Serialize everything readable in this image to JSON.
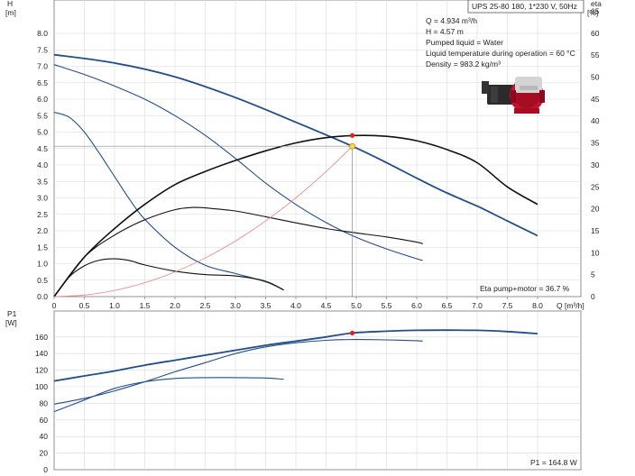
{
  "header": {
    "title": "UPS 25-80 180, 1*230 V, 50Hz"
  },
  "info": {
    "lines": [
      "Q = 4.934 m³/h",
      "H = 4.57 m",
      "Pumped liquid = Water",
      "Liquid temperature during operation = 60 °C",
      "Density = 983.2 kg/m³"
    ]
  },
  "pump_image": {
    "icon": "circulator-pump-icon",
    "accent": "#c8102e"
  },
  "chart_data": [
    {
      "type": "line",
      "name": "head-eta-chart",
      "ylabel_left": [
        "H",
        "[m]"
      ],
      "ylabel_right": [
        "eta",
        "[%]"
      ],
      "xlabel": "Q [m³/h]",
      "xlim": [
        0,
        8.6
      ],
      "ylim": [
        0,
        8.8
      ],
      "ylim_right": [
        0,
        75
      ],
      "x_ticks": [
        0,
        0.5,
        1,
        1.5,
        2,
        2.5,
        3,
        3.5,
        4,
        4.5,
        5,
        5.5,
        6,
        6.5,
        7,
        7.5,
        8
      ],
      "x_tick_labels": [
        "0",
        "0.5",
        "1.0",
        "1.5",
        "2.0",
        "2.5",
        "3.0",
        "3.5",
        "4.0",
        "4.5",
        "5.0",
        "5.5",
        "6.0",
        "6.5",
        "7.0",
        "7.5",
        "8.0"
      ],
      "y_ticks": [
        0,
        0.5,
        1,
        1.5,
        2,
        2.5,
        3,
        3.5,
        4,
        4.5,
        5,
        5.5,
        6,
        6.5,
        7,
        7.5,
        8
      ],
      "y_tick_labels": [
        "0.0",
        "0.5",
        "1.0",
        "1.5",
        "2.0",
        "2.5",
        "3.0",
        "3.5",
        "4.0",
        "4.5",
        "5.0",
        "5.5",
        "6.0",
        "6.5",
        "7.0",
        "7.5",
        "8.0"
      ],
      "y_right_ticks": [
        0,
        5,
        10,
        15,
        20,
        25,
        30,
        35,
        40,
        45,
        50,
        55,
        60,
        65
      ],
      "grid": true,
      "series": [
        {
          "role": "head-speed-3",
          "axis": "left",
          "color": "#1f4e8c",
          "width": 1.8,
          "x": [
            0,
            1,
            2,
            3,
            4,
            4.934,
            5.5,
            6,
            6.5,
            7,
            7.5,
            8
          ],
          "y": [
            7.35,
            7.1,
            6.68,
            6.05,
            5.3,
            4.57,
            4.07,
            3.6,
            3.15,
            2.75,
            2.3,
            1.85
          ]
        },
        {
          "role": "head-speed-2",
          "axis": "left",
          "color": "#1f4e8c",
          "width": 1.1,
          "x": [
            0,
            0.5,
            1,
            1.5,
            2,
            2.5,
            3,
            3.5,
            4,
            4.5,
            5,
            5.5,
            6,
            6.1
          ],
          "y": [
            7.05,
            6.75,
            6.4,
            6.0,
            5.5,
            4.9,
            4.2,
            3.45,
            2.8,
            2.25,
            1.8,
            1.45,
            1.15,
            1.1
          ]
        },
        {
          "role": "head-speed-1",
          "axis": "left",
          "color": "#1f4e8c",
          "width": 1.1,
          "x": [
            0,
            0.25,
            0.5,
            0.75,
            1,
            1.25,
            1.5,
            2,
            2.5,
            3,
            3.5,
            3.8
          ],
          "y": [
            5.6,
            5.45,
            5.0,
            4.35,
            3.65,
            2.95,
            2.35,
            1.5,
            0.95,
            0.7,
            0.45,
            0.2
          ]
        },
        {
          "role": "eta-speed-3",
          "axis": "right",
          "color": "#111111",
          "width": 1.6,
          "x": [
            0,
            0.5,
            1,
            1.5,
            2,
            2.5,
            3,
            3.5,
            4,
            4.5,
            5,
            5.5,
            6,
            6.5,
            7,
            7.5,
            8
          ],
          "y": [
            0,
            9,
            15.5,
            21,
            25.5,
            28.5,
            31,
            33.2,
            35,
            36.2,
            36.7,
            36.5,
            35.5,
            33.5,
            30.5,
            25,
            21
          ]
        },
        {
          "role": "eta-speed-2",
          "axis": "right",
          "color": "#111111",
          "width": 1.1,
          "x": [
            0,
            0.5,
            1,
            1.5,
            2,
            2.3,
            2.5,
            3,
            3.5,
            4,
            4.5,
            5,
            5.5,
            6,
            6.1
          ],
          "y": [
            0,
            9,
            14,
            17.5,
            19.8,
            20.3,
            20.2,
            19.5,
            18.2,
            16.8,
            15.5,
            14.5,
            13.6,
            12.4,
            12
          ]
        },
        {
          "role": "eta-speed-1",
          "axis": "right",
          "color": "#111111",
          "width": 1.1,
          "x": [
            0,
            0.25,
            0.5,
            0.75,
            1,
            1.25,
            1.5,
            2,
            2.5,
            3,
            3.5,
            3.8
          ],
          "y": [
            0,
            4.5,
            7,
            8.3,
            8.6,
            8.2,
            7.2,
            5.8,
            5.0,
            4.7,
            3.5,
            1.5
          ]
        },
        {
          "role": "system-curve",
          "axis": "left",
          "color": "#f08080",
          "width": 0.8,
          "x": [
            0,
            0.5,
            1,
            1.5,
            2,
            2.5,
            3,
            3.5,
            4,
            4.5,
            4.934
          ],
          "y": [
            0,
            0.047,
            0.188,
            0.422,
            0.751,
            1.173,
            1.689,
            2.299,
            3.003,
            3.8,
            4.57
          ]
        }
      ],
      "duty_point": {
        "x": 4.934,
        "y": 4.57,
        "eta": 36.7
      },
      "annotation": "Eta pump+motor = 36.7 %"
    },
    {
      "type": "line",
      "name": "power-chart",
      "ylabel": [
        "P1",
        "[W]"
      ],
      "xlim": [
        0,
        8.6
      ],
      "ylim": [
        0,
        190
      ],
      "y_ticks": [
        0,
        20,
        40,
        60,
        80,
        100,
        120,
        140,
        160
      ],
      "y_tick_labels": [
        "0",
        "20",
        "40",
        "60",
        "80",
        "100",
        "120",
        "140",
        "160"
      ],
      "x_ticks": [
        0,
        0.5,
        1,
        1.5,
        2,
        2.5,
        3,
        3.5,
        4,
        4.5,
        5,
        5.5,
        6,
        6.5,
        7,
        7.5,
        8
      ],
      "grid": true,
      "series": [
        {
          "role": "power-speed-3",
          "color": "#1f4e8c",
          "width": 1.8,
          "x": [
            0,
            0.5,
            1,
            1.5,
            2,
            2.5,
            3,
            3.5,
            4,
            4.5,
            4.934,
            5.5,
            6,
            6.5,
            7,
            7.5,
            8
          ],
          "y": [
            107,
            113,
            119,
            126,
            132,
            138,
            144,
            150,
            155,
            160,
            164.8,
            167,
            168,
            168.3,
            168,
            166.5,
            164
          ]
        },
        {
          "role": "power-speed-2",
          "color": "#1f4e8c",
          "width": 1.1,
          "x": [
            0,
            0.5,
            1,
            1.5,
            2,
            2.5,
            3,
            3.5,
            4,
            4.5,
            5,
            5.5,
            6,
            6.1
          ],
          "y": [
            79,
            86,
            95,
            106,
            118,
            129,
            140,
            148,
            153,
            156,
            157,
            156.5,
            155.5,
            155
          ]
        },
        {
          "role": "power-speed-1",
          "color": "#1f4e8c",
          "width": 1.1,
          "x": [
            0,
            0.5,
            1,
            1.5,
            2,
            2.5,
            3,
            3.5,
            3.8
          ],
          "y": [
            70,
            84,
            98,
            106,
            110,
            111,
            111,
            110.5,
            109
          ]
        }
      ],
      "duty_point": {
        "x": 4.934,
        "y": 164.8
      },
      "annotation": "P1 = 164.8 W"
    }
  ]
}
